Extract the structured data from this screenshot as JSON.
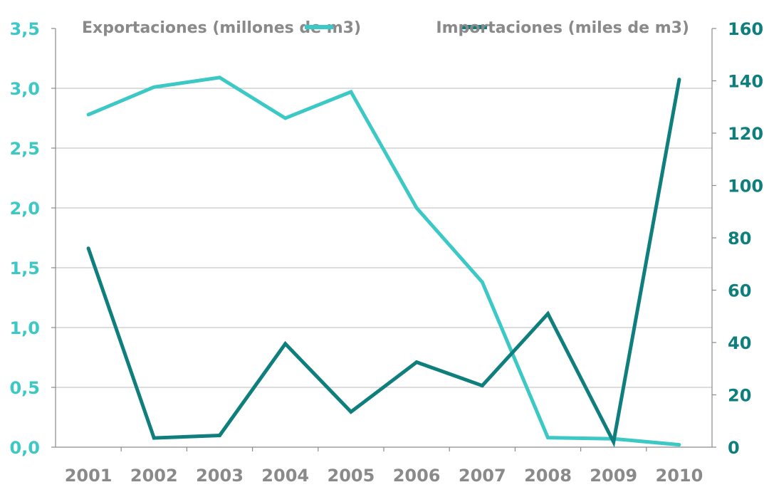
{
  "chart_data": {
    "type": "line",
    "categories": [
      "2001",
      "2002",
      "2003",
      "2004",
      "2005",
      "2006",
      "2007",
      "2008",
      "2009",
      "2010"
    ],
    "series": [
      {
        "name": "Exportaciones (millones de m3)",
        "axis": "left",
        "color": "#3cc9c6",
        "values": [
          2.78,
          3.01,
          3.09,
          2.75,
          2.97,
          2.0,
          1.38,
          0.08,
          0.07,
          0.02
        ]
      },
      {
        "name": "Importaciones (miles de m3)",
        "axis": "right",
        "color": "#0f7f7d",
        "values": [
          76,
          3.5,
          4.5,
          39.5,
          13.5,
          32.5,
          23.5,
          51,
          2,
          140.5
        ]
      }
    ],
    "y_left": {
      "lim": [
        0,
        3.5
      ],
      "ticks": [
        "0,0",
        "0,5",
        "1,0",
        "1,5",
        "2,0",
        "2,5",
        "3,0",
        "3,5"
      ]
    },
    "y_right": {
      "lim": [
        0,
        160
      ],
      "ticks": [
        "0",
        "20",
        "40",
        "60",
        "80",
        "100",
        "120",
        "140",
        "160"
      ]
    },
    "grid": "horizontal",
    "legend": "top"
  }
}
